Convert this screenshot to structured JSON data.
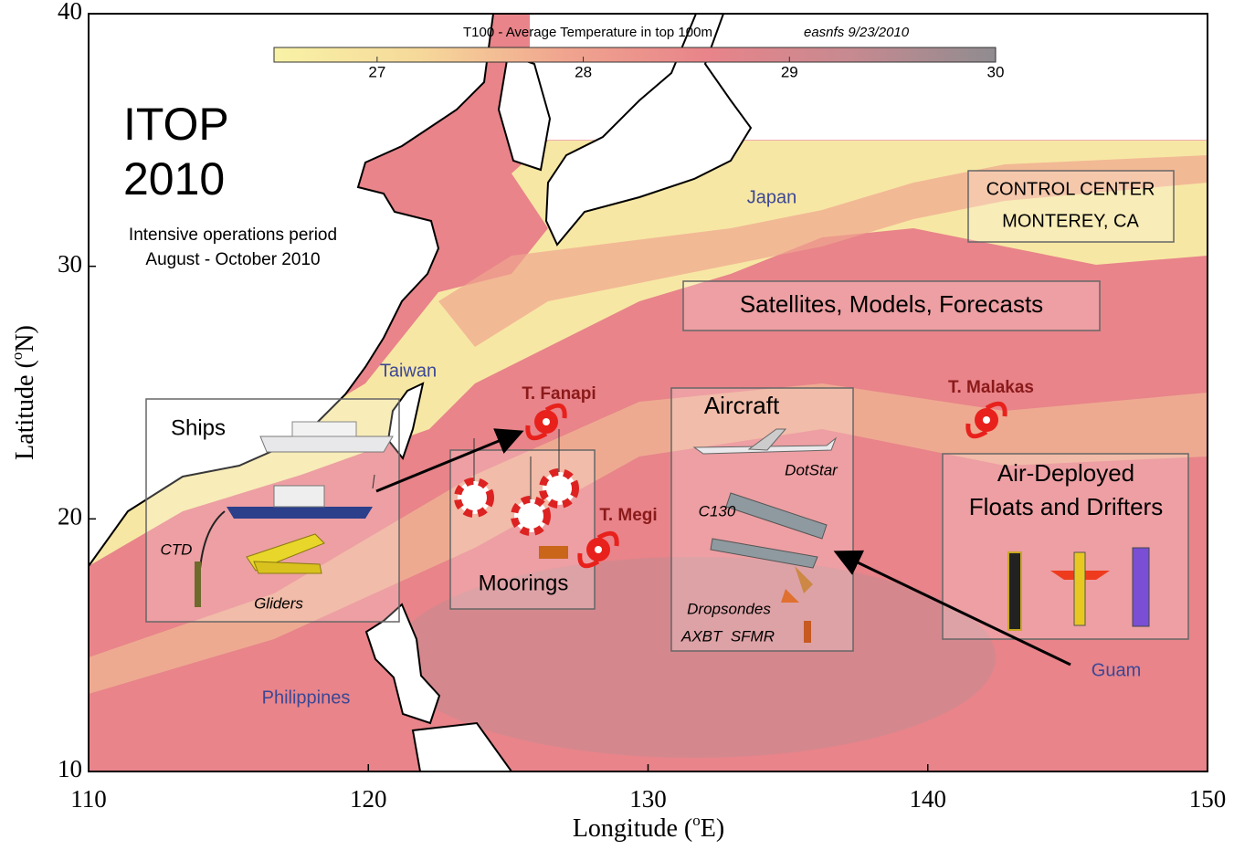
{
  "title": {
    "line1": "ITOP",
    "line2": "2010"
  },
  "subtitle": [
    "Intensive operations period",
    "August - October 2010"
  ],
  "axes": {
    "xlim": [
      110,
      150
    ],
    "ylim": [
      10,
      40
    ],
    "xticks": [
      110,
      120,
      130,
      140,
      150
    ],
    "yticks": [
      10,
      20,
      30,
      40
    ],
    "xlabel": {
      "before": "Longitude (",
      "sup": "o",
      "after": "E)"
    },
    "ylabel": {
      "before": "Latitude (",
      "sup": "o",
      "after": "N)"
    }
  },
  "colorbar": {
    "title": "T100 - Average Temperature in top 100m",
    "source": "easnfs 9/23/2010",
    "lim": [
      26.5,
      30
    ],
    "ticks": [
      27,
      28,
      29,
      30
    ],
    "colors": [
      "#f8f2a6",
      "#f6d99a",
      "#f0a58f",
      "#e8848a",
      "#c68a90",
      "#8f8c90"
    ]
  },
  "places": {
    "japan": "Japan",
    "taiwan": "Taiwan",
    "philippines": "Philippines",
    "guam": "Guam"
  },
  "storms": [
    "T. Fanapi",
    "T. Megi",
    "T. Malakas"
  ],
  "panels": {
    "ships": {
      "title": "Ships",
      "items": [
        "CTD",
        "Gliders"
      ]
    },
    "moorings": {
      "title": "Moorings"
    },
    "aircraft": {
      "title": "Aircraft",
      "items": [
        "DotStar",
        "C130",
        "Dropsondes",
        "AXBT  SFMR"
      ]
    },
    "floats": {
      "title": [
        "Air-Deployed",
        "Floats and Drifters"
      ]
    },
    "control": {
      "title": [
        "CONTROL CENTER",
        "MONTEREY, CA"
      ]
    },
    "satellites": {
      "title": "Satellites, Models, Forecasts"
    }
  }
}
